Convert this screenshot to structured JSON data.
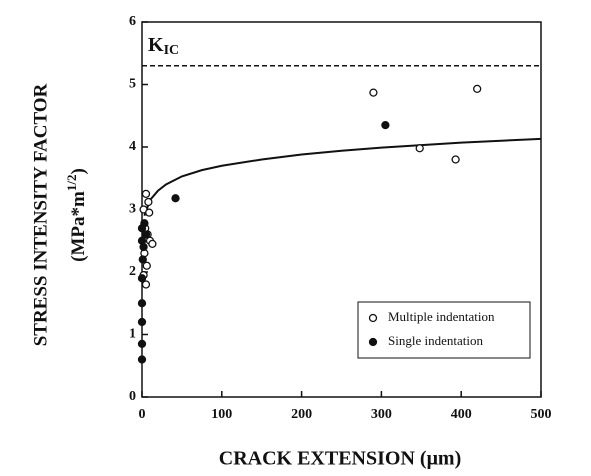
{
  "chart_data": {
    "type": "scatter",
    "x_label": "CRACK EXTENSION (μm)",
    "y_label": {
      "line1": "STRESS INTENSITY FACTOR",
      "line2_start": "(MPa*m",
      "line2_sup": "1/2",
      "line2_end": ")"
    },
    "xlim": [
      0,
      500
    ],
    "xticks": [
      0,
      100,
      200,
      300,
      400,
      500
    ],
    "ylim": [
      0,
      6
    ],
    "yticks": [
      0,
      1,
      2,
      3,
      4,
      5,
      6
    ],
    "grid": false,
    "legend": "lower right",
    "series": [
      {
        "name": "Multiple indentation",
        "color": "#111111",
        "marker": "open",
        "x": [
          290,
          420,
          348,
          393,
          5,
          8,
          2,
          9,
          4,
          7,
          10,
          13,
          3,
          6,
          5,
          2
        ],
        "values": [
          4.87,
          4.93,
          3.98,
          3.8,
          3.25,
          3.12,
          3.0,
          2.95,
          2.7,
          2.6,
          2.5,
          2.45,
          2.3,
          2.1,
          1.8,
          1.95
        ]
      },
      {
        "name": "Single indentation",
        "color": "#111111",
        "marker": "filled",
        "x": [
          305,
          42,
          0,
          0,
          0,
          0,
          0,
          1,
          0,
          0,
          3,
          5,
          2
        ],
        "values": [
          4.35,
          3.18,
          0.6,
          0.85,
          1.2,
          1.5,
          1.9,
          2.2,
          2.5,
          2.7,
          2.78,
          2.6,
          2.4
        ]
      }
    ],
    "curve": {
      "color": "#111111",
      "x": [
        3,
        10,
        20,
        30,
        50,
        75,
        100,
        150,
        200,
        250,
        300,
        350,
        400,
        450,
        500
      ],
      "values": [
        2.9,
        3.15,
        3.3,
        3.4,
        3.53,
        3.63,
        3.7,
        3.8,
        3.88,
        3.94,
        3.99,
        4.03,
        4.07,
        4.1,
        4.13
      ]
    },
    "reference_line": {
      "value": 5.3,
      "label": "K",
      "label_sub": "IC",
      "style": "dashed"
    }
  }
}
